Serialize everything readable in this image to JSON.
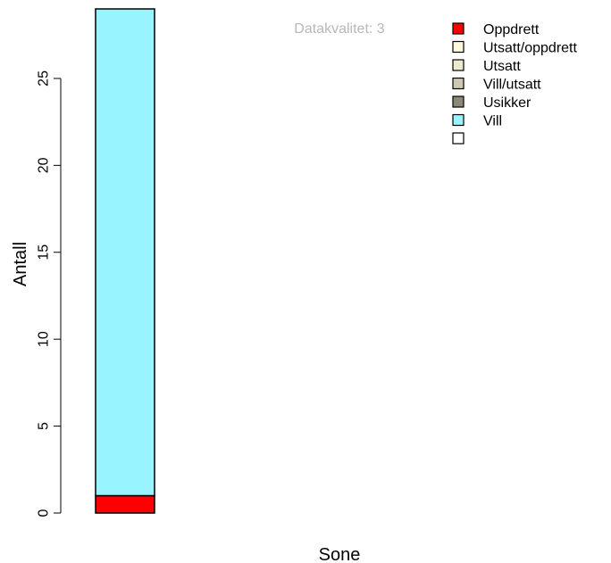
{
  "chart_data": {
    "type": "bar",
    "stacked": true,
    "subtitle": "Datakvalitet: 3",
    "xlabel": "Sone",
    "ylabel": "Antall",
    "categories": [
      ""
    ],
    "ylim": [
      0,
      29
    ],
    "yticks": [
      0,
      5,
      10,
      15,
      20,
      25
    ],
    "grid": false,
    "legend_position": "top-right",
    "series": [
      {
        "name": "Oppdrett",
        "color": "#ff0000",
        "values": [
          1
        ]
      },
      {
        "name": "Utsatt/oppdrett",
        "color": "#fff8dc",
        "values": [
          0
        ]
      },
      {
        "name": "Utsatt",
        "color": "#eee8cd",
        "values": [
          0
        ]
      },
      {
        "name": "Vill/utsatt",
        "color": "#cdc8b1",
        "values": [
          0
        ]
      },
      {
        "name": "Usikker",
        "color": "#8b8878",
        "values": [
          0
        ]
      },
      {
        "name": "Vill",
        "color": "#98f5ff",
        "values": [
          28
        ]
      },
      {
        "name": "",
        "color": "#ffffff",
        "values": [
          0
        ]
      }
    ]
  }
}
